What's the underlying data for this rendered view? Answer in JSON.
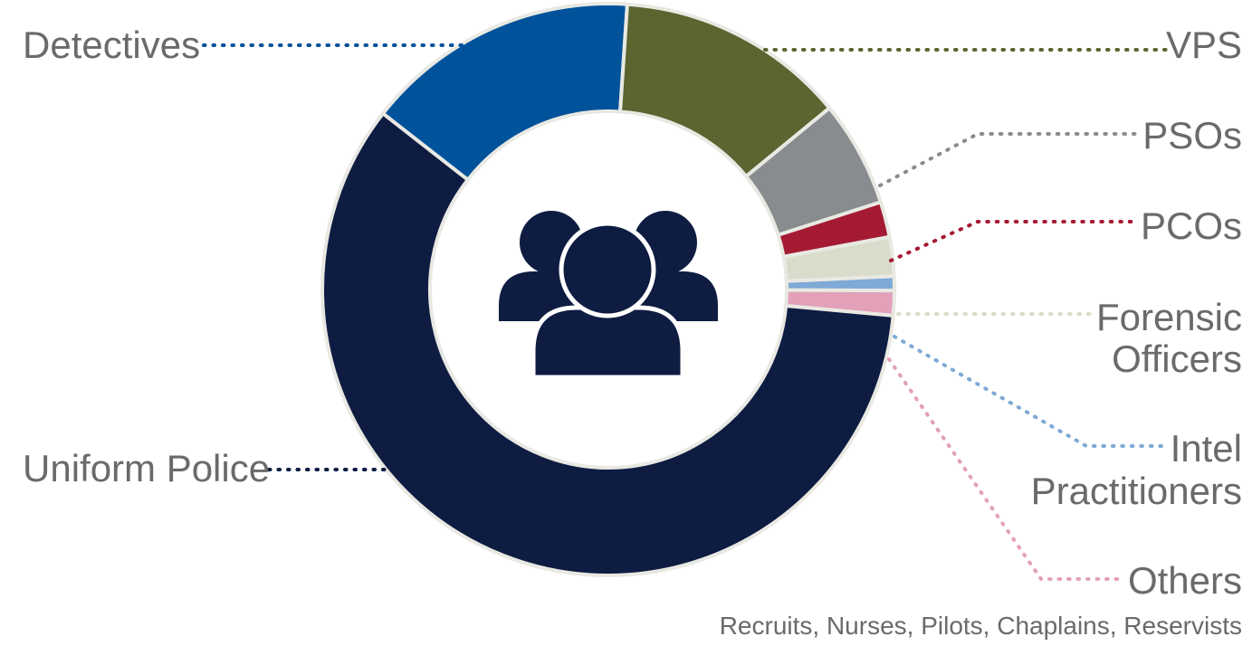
{
  "chart_data": {
    "type": "pie",
    "style": "donut",
    "center_icon": "group-of-people-icon",
    "slices": [
      {
        "label": "Detectives",
        "value": 15.5,
        "color": "#00529B"
      },
      {
        "label": "VPS",
        "value": 13.0,
        "color": "#5A6530"
      },
      {
        "label": "PSOs",
        "value": 6.0,
        "color": "#898C8E"
      },
      {
        "label": "PCOs",
        "value": 2.0,
        "color": "#A51A33"
      },
      {
        "label": "Forensic Officers",
        "label_lines": [
          "Forensic",
          "Officers"
        ],
        "value": 2.2,
        "color": "#D9DCCB"
      },
      {
        "label": "Intel Practitioners",
        "label_lines": [
          "Intel",
          "Practitioners"
        ],
        "value": 0.8,
        "color": "#7FA9D6"
      },
      {
        "label": "Others",
        "label_lines": [
          "Others"
        ],
        "sublabel": "Recruits, Nurses, Pilots, Chaplains, Reservists",
        "value": 1.4,
        "color": "#E2A1B8"
      },
      {
        "label": "Uniform Police",
        "value": 59.1,
        "color": "#0E1C42"
      }
    ],
    "colors": {
      "ring_gap": "#e9e9e3",
      "label_text": "#6a6a6a",
      "icon": "#0E1C42"
    }
  }
}
